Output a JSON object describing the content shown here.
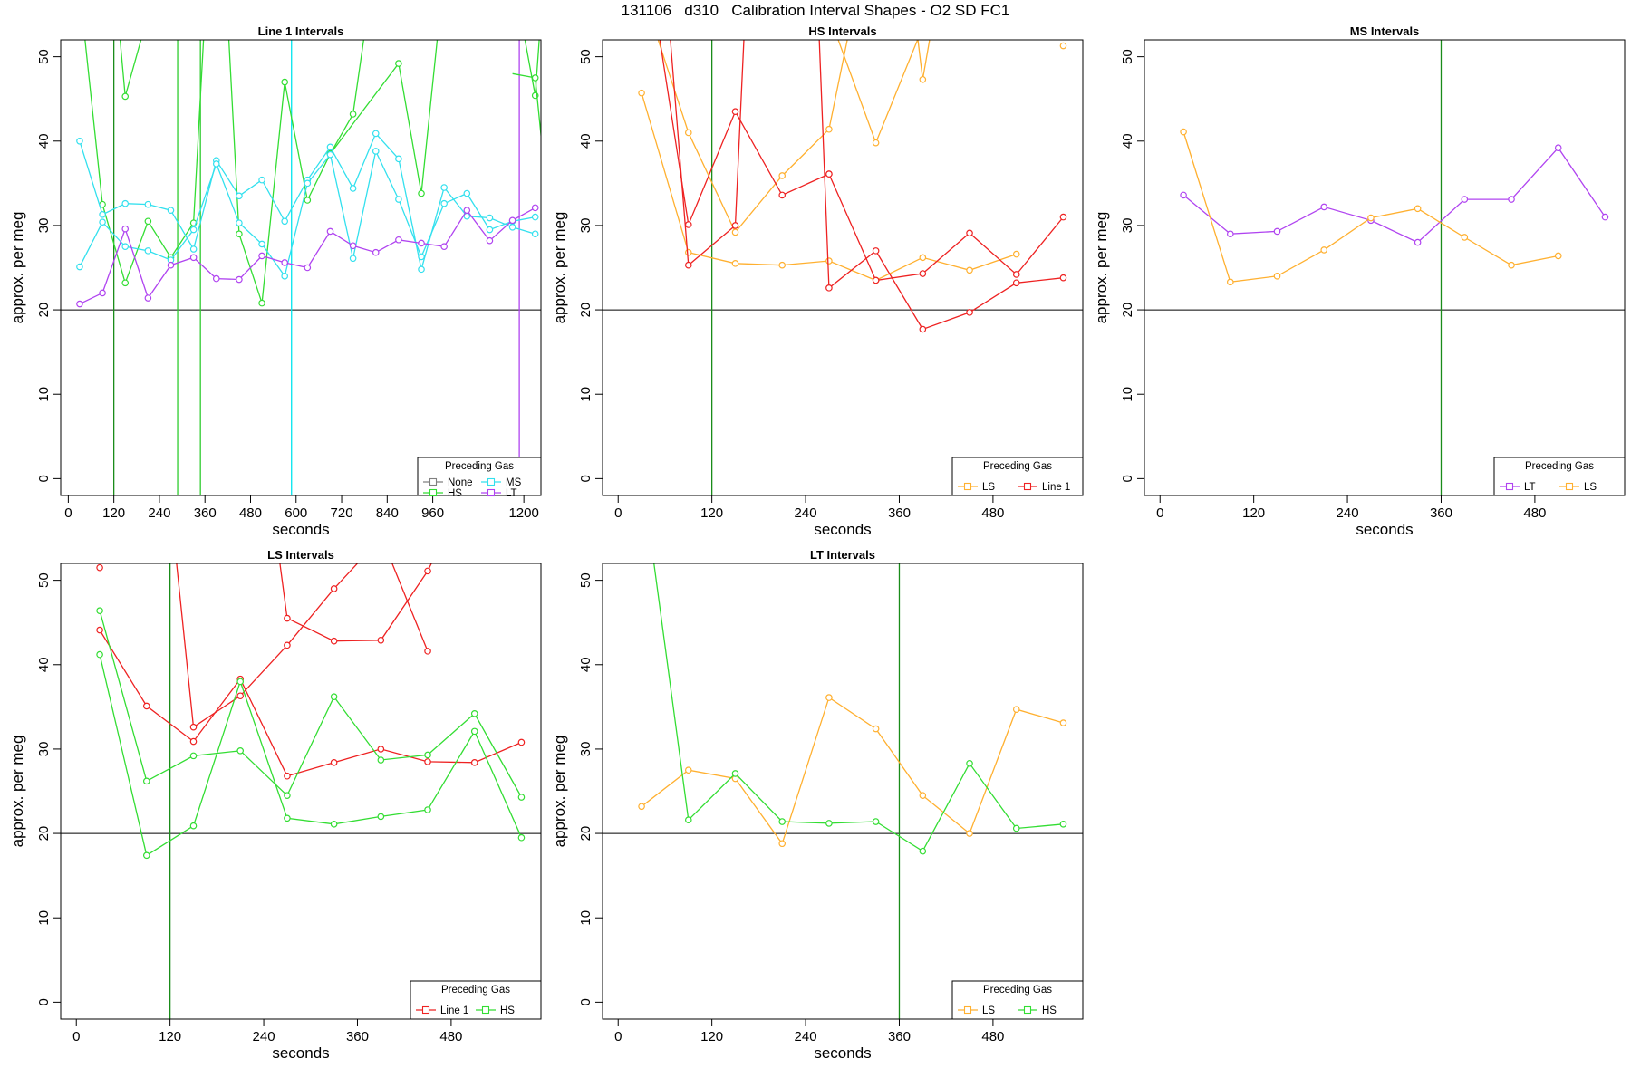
{
  "figure": {
    "title": "131106   d310   Calibration Interval Shapes - O2 SD FC1"
  },
  "chart_data": [
    {
      "type": "line",
      "title": "Line 1 Intervals",
      "xlabel": "seconds",
      "ylabel": "approx. per meg",
      "xlim": [
        -20,
        1245
      ],
      "ylim": [
        -2,
        52
      ],
      "xticks": [
        0,
        120,
        240,
        360,
        480,
        600,
        720,
        840,
        960,
        1200
      ],
      "yticks": [
        0,
        10,
        20,
        30,
        40,
        50
      ],
      "hline": 20,
      "vlines": [
        {
          "x": 120,
          "color": "#1a8c1a"
        },
        {
          "x": 288,
          "color": "#2ecc2e"
        },
        {
          "x": 348,
          "color": "#2ecc2e"
        },
        {
          "x": 588,
          "color": "#00e5ee"
        },
        {
          "x": 1188,
          "color": "#b044f0"
        }
      ],
      "legend": {
        "title": "Preceding Gas",
        "position": "bottom-right",
        "columns": 2,
        "items": [
          {
            "label": "None",
            "color": "#808080"
          },
          {
            "label": "MS",
            "color": "#33e0ee"
          },
          {
            "label": "HS",
            "color": "#33dd33"
          },
          {
            "label": "LT",
            "color": "#b044f0"
          }
        ]
      },
      "series": [
        {
          "name": "HS",
          "color": "#33dd33",
          "x": [
            30,
            90,
            150,
            210,
            270,
            330,
            390,
            450,
            510,
            570,
            630,
            690
          ],
          "y": [
            58,
            32.5,
            23.2,
            30.5,
            26.2,
            30.3,
            80,
            29.0,
            20.8,
            47.0,
            33.0,
            38.5
          ],
          "markers": [
            false,
            true,
            true,
            true,
            true,
            true,
            false,
            true,
            true,
            true,
            true,
            true
          ]
        },
        {
          "name": "HS",
          "color": "#33dd33",
          "x": [
            90,
            150,
            210
          ],
          "y": [
            75,
            45.3,
            55
          ],
          "markers": [
            false,
            true,
            false
          ]
        },
        {
          "name": "HS",
          "color": "#33dd33",
          "x": [
            690,
            750,
            810
          ],
          "y": [
            38.5,
            43.2,
            62
          ],
          "markers": [
            true,
            true,
            false
          ]
        },
        {
          "name": "HS",
          "color": "#33dd33",
          "x": [
            690,
            870,
            930,
            990
          ],
          "y": [
            38.5,
            49.2,
            33.8,
            60
          ],
          "markers": [
            true,
            true,
            true,
            false
          ]
        },
        {
          "name": "HS",
          "color": "#33dd33",
          "x": [
            1170,
            1230,
            1250
          ],
          "y": [
            60,
            45.4,
            58
          ],
          "markers": [
            false,
            true,
            false
          ]
        },
        {
          "name": "HS",
          "color": "#33dd33",
          "x": [
            1170,
            1230,
            1250
          ],
          "y": [
            48,
            47.5,
            38.5
          ],
          "markers": [
            false,
            true,
            false
          ]
        },
        {
          "name": "MS",
          "color": "#33e0ee",
          "x": [
            30,
            90,
            150,
            210,
            270,
            330,
            390,
            450,
            510,
            570,
            630,
            690,
            750,
            810,
            870,
            930,
            990,
            1050,
            1110,
            1170,
            1230
          ],
          "y": [
            40.0,
            31.3,
            32.6,
            32.5,
            31.8,
            27.2,
            37.7,
            33.5,
            35.4,
            30.5,
            35.4,
            39.3,
            34.4,
            40.9,
            37.9,
            24.8,
            34.5,
            31.1,
            30.9,
            29.8,
            29.0
          ],
          "markers": true
        },
        {
          "name": "MS",
          "color": "#33e0ee",
          "x": [
            30,
            90,
            150,
            210,
            270,
            330,
            390,
            450,
            510,
            570,
            630,
            690,
            750,
            810,
            870,
            930,
            990,
            1050,
            1110,
            1170,
            1230
          ],
          "y": [
            25.1,
            30.4,
            27.5,
            27.0,
            25.9,
            29.5,
            37.3,
            30.3,
            27.8,
            24.0,
            35.0,
            38.4,
            26.1,
            38.8,
            33.1,
            26.3,
            32.6,
            33.8,
            29.5,
            30.5,
            31.0
          ],
          "markers": true
        },
        {
          "name": "LT",
          "color": "#b044f0",
          "x": [
            30,
            90,
            150,
            210,
            270,
            330,
            390,
            450,
            510,
            570,
            630,
            690,
            750,
            810,
            870,
            930,
            990,
            1050,
            1110,
            1170,
            1230
          ],
          "y": [
            20.7,
            22.0,
            29.6,
            21.4,
            25.3,
            26.2,
            23.7,
            23.6,
            26.4,
            25.6,
            25.0,
            29.3,
            27.6,
            26.8,
            28.3,
            27.9,
            27.5,
            31.8,
            28.2,
            30.6,
            32.1
          ],
          "markers": true
        }
      ]
    },
    {
      "type": "line",
      "title": "HS Intervals",
      "xlabel": "seconds",
      "ylabel": "approx. per meg",
      "xlim": [
        -20,
        595
      ],
      "ylim": [
        -2,
        52
      ],
      "xticks": [
        0,
        120,
        240,
        360,
        480
      ],
      "yticks": [
        0,
        10,
        20,
        30,
        40,
        50
      ],
      "hline": 20,
      "vlines": [
        {
          "x": 120,
          "color": "#1a8c1a"
        }
      ],
      "legend": {
        "title": "Preceding Gas",
        "position": "bottom-right",
        "columns": 2,
        "items": [
          {
            "label": "LS",
            "color": "#ffb030"
          },
          {
            "label": "Line 1",
            "color": "#ee2222"
          }
        ]
      },
      "series": [
        {
          "name": "LS",
          "color": "#ffb030",
          "x": [
            30,
            90,
            150,
            210,
            270,
            330,
            390,
            450,
            510
          ],
          "y": [
            45.7,
            26.8,
            25.5,
            25.3,
            25.8,
            23.5,
            26.2,
            24.7,
            26.6
          ],
          "markers": true
        },
        {
          "name": "LS",
          "color": "#ffb030",
          "x": [
            30,
            90,
            150,
            210,
            270,
            300
          ],
          "y": [
            58,
            41.0,
            29.2,
            35.9,
            41.4,
            55
          ],
          "markers": [
            false,
            true,
            true,
            true,
            true,
            false
          ]
        },
        {
          "name": "LS",
          "color": "#ffb030",
          "x": [
            270,
            330,
            390,
            410
          ],
          "y": [
            55,
            39.8,
            53.5,
            58
          ],
          "markers": [
            false,
            true,
            false,
            false
          ]
        },
        {
          "name": "LS",
          "color": "#ffb030",
          "x": [
            380,
            390,
            410
          ],
          "y": [
            55,
            47.3,
            58
          ],
          "markers": [
            false,
            true,
            false
          ]
        },
        {
          "name": "LS",
          "color": "#ffb030",
          "x": [
            570
          ],
          "y": [
            51.3
          ],
          "markers": true
        },
        {
          "name": "Line 1",
          "color": "#ee2222",
          "x": [
            40,
            90,
            150,
            210,
            270
          ],
          "y": [
            60,
            30.1,
            43.5,
            33.6,
            36.1
          ],
          "markers": [
            false,
            true,
            true,
            true,
            true
          ]
        },
        {
          "name": "Line 1",
          "color": "#ee2222",
          "x": [
            270,
            330,
            390,
            450,
            510,
            570
          ],
          "y": [
            36.1,
            23.5,
            24.3,
            29.1,
            24.2,
            31.0
          ],
          "markers": true
        },
        {
          "name": "Line 1",
          "color": "#ee2222",
          "x": [
            60,
            90,
            150,
            165
          ],
          "y": [
            60,
            25.3,
            30.0,
            60
          ],
          "markers": [
            false,
            true,
            true,
            false
          ]
        },
        {
          "name": "Line 1",
          "color": "#ee2222",
          "x": [
            255,
            270,
            330,
            390,
            450,
            510,
            570
          ],
          "y": [
            58,
            22.6,
            27.0,
            17.7,
            19.7,
            23.2,
            23.8
          ],
          "markers": [
            false,
            true,
            true,
            true,
            true,
            true,
            true
          ]
        }
      ]
    },
    {
      "type": "line",
      "title": "MS Intervals",
      "xlabel": "seconds",
      "ylabel": "approx. per meg",
      "xlim": [
        -20,
        595
      ],
      "ylim": [
        -2,
        52
      ],
      "xticks": [
        0,
        120,
        240,
        360,
        480
      ],
      "yticks": [
        0,
        10,
        20,
        30,
        40,
        50
      ],
      "hline": 20,
      "vlines": [
        {
          "x": 360,
          "color": "#1a8c1a"
        }
      ],
      "legend": {
        "title": "Preceding Gas",
        "position": "bottom-right",
        "columns": 2,
        "items": [
          {
            "label": "LT",
            "color": "#b044f0"
          },
          {
            "label": "LS",
            "color": "#ffb030"
          }
        ]
      },
      "series": [
        {
          "name": "LT",
          "color": "#b044f0",
          "x": [
            30,
            90,
            150,
            210,
            270,
            330,
            390,
            450,
            510,
            570
          ],
          "y": [
            33.6,
            29.0,
            29.3,
            32.2,
            30.6,
            28.0,
            33.1,
            33.1,
            39.2,
            31.0
          ],
          "markers": true
        },
        {
          "name": "LS",
          "color": "#ffb030",
          "x": [
            30,
            90,
            150,
            210,
            270,
            330,
            390,
            450,
            510
          ],
          "y": [
            41.1,
            23.3,
            24.0,
            27.1,
            30.9,
            32.0,
            28.6,
            25.3,
            26.4
          ],
          "markers": true
        }
      ]
    },
    {
      "type": "line",
      "title": "LS Intervals",
      "xlabel": "seconds",
      "ylabel": "approx. per meg",
      "xlim": [
        -20,
        595
      ],
      "ylim": [
        -2,
        52
      ],
      "xticks": [
        0,
        120,
        240,
        360,
        480
      ],
      "yticks": [
        0,
        10,
        20,
        30,
        40,
        50
      ],
      "hline": 20,
      "vlines": [
        {
          "x": 120,
          "color": "#1a8c1a"
        }
      ],
      "legend": {
        "title": "Preceding Gas",
        "position": "bottom-right",
        "columns": 2,
        "items": [
          {
            "label": "Line 1",
            "color": "#ee2222"
          },
          {
            "label": "HS",
            "color": "#33dd33"
          }
        ]
      },
      "series": [
        {
          "name": "Line 1",
          "color": "#ee2222",
          "x": [
            30,
            90,
            150,
            210,
            270,
            330,
            390,
            450,
            510,
            570
          ],
          "y": [
            44.1,
            35.1,
            30.9,
            38.3,
            26.8,
            28.4,
            30.0,
            28.5,
            28.4,
            30.8
          ],
          "markers": true
        },
        {
          "name": "Line 1",
          "color": "#ee2222",
          "x": [
            125,
            150,
            210,
            270,
            330,
            370
          ],
          "y": [
            55,
            32.6,
            36.3,
            42.3,
            49.0,
            53
          ],
          "markers": [
            false,
            true,
            true,
            true,
            true,
            false
          ]
        },
        {
          "name": "Line 1",
          "color": "#ee2222",
          "x": [
            255,
            270,
            330,
            390,
            450,
            460
          ],
          "y": [
            56,
            45.5,
            42.8,
            42.9,
            51.1,
            53
          ],
          "markers": [
            false,
            true,
            true,
            true,
            true,
            false
          ]
        },
        {
          "name": "Line 1",
          "color": "#ee2222",
          "x": [
            400,
            450
          ],
          "y": [
            53,
            41.6
          ],
          "markers": [
            false,
            true
          ]
        },
        {
          "name": "Line 1",
          "color": "#ee2222",
          "x": [
            30
          ],
          "y": [
            51.5
          ],
          "markers": true
        },
        {
          "name": "HS",
          "color": "#33dd33",
          "x": [
            30,
            90,
            150,
            210,
            270,
            330,
            390,
            450,
            510,
            570
          ],
          "y": [
            46.4,
            26.2,
            29.2,
            29.8,
            24.5,
            36.2,
            28.7,
            29.3,
            34.2,
            24.3
          ],
          "markers": true
        },
        {
          "name": "HS",
          "color": "#33dd33",
          "x": [
            30,
            90,
            150,
            210,
            270,
            330,
            390,
            450,
            510,
            570
          ],
          "y": [
            41.2,
            17.4,
            20.9,
            38.0,
            21.8,
            21.1,
            22.0,
            22.8,
            32.1,
            19.5
          ],
          "markers": true
        }
      ]
    },
    {
      "type": "line",
      "title": "LT Intervals",
      "xlabel": "seconds",
      "ylabel": "approx. per meg",
      "xlim": [
        -20,
        595
      ],
      "ylim": [
        -2,
        52
      ],
      "xticks": [
        0,
        120,
        240,
        360,
        480
      ],
      "yticks": [
        0,
        10,
        20,
        30,
        40,
        50
      ],
      "hline": 20,
      "vlines": [
        {
          "x": 360,
          "color": "#1a8c1a"
        }
      ],
      "legend": {
        "title": "Preceding Gas",
        "position": "bottom-right",
        "columns": 2,
        "items": [
          {
            "label": "LS",
            "color": "#ffb030"
          },
          {
            "label": "HS",
            "color": "#33dd33"
          }
        ]
      },
      "series": [
        {
          "name": "LS",
          "color": "#ffb030",
          "x": [
            30,
            90,
            150,
            210,
            270,
            330,
            390,
            450,
            510,
            570
          ],
          "y": [
            23.2,
            27.5,
            26.5,
            18.8,
            36.1,
            32.4,
            24.5,
            20.0,
            34.7,
            33.1
          ],
          "markers": true
        },
        {
          "name": "HS",
          "color": "#33dd33",
          "x": [
            40,
            90,
            150,
            210,
            270,
            330,
            390,
            450,
            510,
            570
          ],
          "y": [
            56,
            21.6,
            27.1,
            21.4,
            21.2,
            21.4,
            17.9,
            28.3,
            20.6,
            21.1
          ],
          "markers": [
            false,
            true,
            true,
            true,
            true,
            true,
            true,
            true,
            true,
            true
          ]
        }
      ]
    }
  ]
}
